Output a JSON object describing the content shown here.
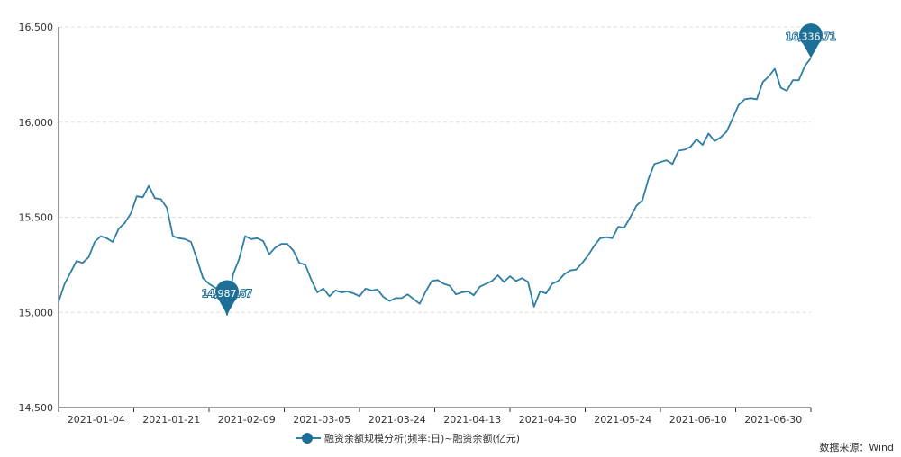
{
  "chart_data": {
    "type": "line",
    "ylim": [
      14500,
      16500
    ],
    "yticks": [
      14500,
      15000,
      15500,
      16000,
      16500
    ],
    "ytick_labels": [
      "14,500",
      "15,000",
      "15,500",
      "16,000",
      "16,500"
    ],
    "xtick_labels": [
      "2021-01-04",
      "2021-01-21",
      "2021-02-09",
      "2021-03-05",
      "2021-03-24",
      "2021-04-13",
      "2021-04-30",
      "2021-05-24",
      "2021-06-10",
      "2021-06-30"
    ],
    "grid": true,
    "series": [
      {
        "name": "融资余额规模分析(频率:日)~融资余额(亿元)",
        "color": "#2f7ea5",
        "values": [
          15055,
          15150,
          15210,
          15270,
          15260,
          15290,
          15370,
          15400,
          15390,
          15370,
          15440,
          15470,
          15520,
          15610,
          15605,
          15665,
          15600,
          15595,
          15550,
          15400,
          15390,
          15385,
          15370,
          15280,
          15180,
          15150,
          15130,
          15110,
          14987.67,
          15200,
          15280,
          15400,
          15385,
          15390,
          15375,
          15305,
          15340,
          15360,
          15360,
          15325,
          15260,
          15250,
          15170,
          15105,
          15125,
          15085,
          15115,
          15105,
          15110,
          15100,
          15085,
          15125,
          15115,
          15120,
          15080,
          15060,
          15075,
          15075,
          15095,
          15070,
          15045,
          15110,
          15165,
          15170,
          15150,
          15140,
          15095,
          15105,
          15110,
          15090,
          15135,
          15150,
          15165,
          15195,
          15160,
          15190,
          15165,
          15180,
          15160,
          15030,
          15110,
          15100,
          15150,
          15165,
          15200,
          15220,
          15225,
          15260,
          15300,
          15350,
          15390,
          15395,
          15390,
          15450,
          15445,
          15500,
          15560,
          15590,
          15700,
          15780,
          15790,
          15800,
          15780,
          15850,
          15855,
          15870,
          15910,
          15880,
          15940,
          15900,
          15920,
          15950,
          16020,
          16090,
          16120,
          16125,
          16120,
          16210,
          16240,
          16280,
          16180,
          16165,
          16220,
          16220,
          16295,
          16336.71
        ]
      }
    ],
    "annotations": [
      {
        "label": "14,987.67",
        "value": 14987.67,
        "type": "min"
      },
      {
        "label": "16,336.71",
        "value": 16336.71,
        "type": "max"
      }
    ],
    "legend_position": "bottom"
  },
  "legend": {
    "label": "融资余额规模分析(频率:日)~融资余额(亿元)"
  },
  "source": "数据来源：Wind",
  "colors": {
    "line": "#2f7ea5",
    "marker": "#1e6f97",
    "grid": "#dddddd",
    "axis": "#333333"
  }
}
